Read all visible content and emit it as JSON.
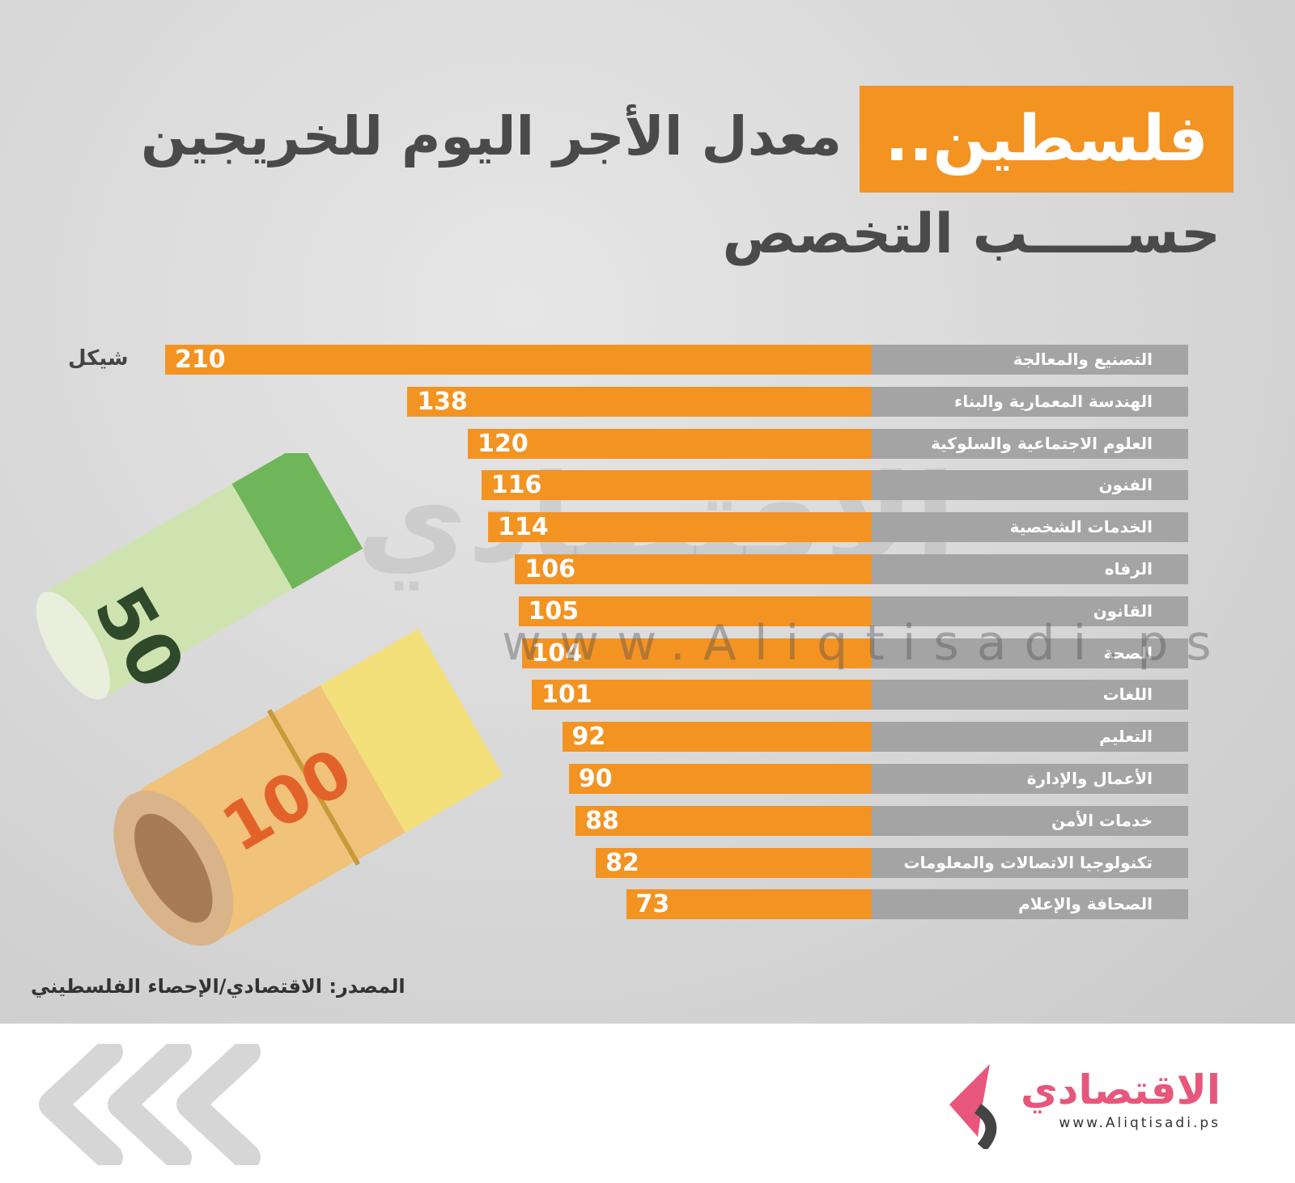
{
  "title": {
    "highlight": "فلسطين..",
    "main": "معدل الأجر اليوم للخريجين",
    "sub": "حســـــب التخصص"
  },
  "unit_label": "شيكل",
  "source": "المصدر: الاقتصادي/الإحصاء الفلسطيني",
  "watermark": {
    "text": "الاقتصادي",
    "url": "www.Aliqtisadi.ps"
  },
  "logo": {
    "text": "الاقتصادي",
    "url": "www.Aliqtisadi.ps"
  },
  "colors": {
    "bar": "#f39322",
    "track": "#a4a4a4",
    "logo": "#e8577b"
  },
  "chart_data": {
    "type": "bar",
    "orientation": "horizontal",
    "title": "فلسطين.. معدل الأجر اليوم للخريجين حسب التخصص",
    "unit": "شيكل",
    "categories": [
      "التصنيع والمعالجة",
      "الهندسة المعمارية والبناء",
      "العلوم الاجتماعية والسلوكية",
      "الفنون",
      "الخدمات الشخصية",
      "الرفاه",
      "القانون",
      "الصحة",
      "اللغات",
      "التعليم",
      "الأعمال والإدارة",
      "خدمات الأمن",
      "تكنولوجيا الاتصالات والمعلومات",
      "الصحافة والإعلام"
    ],
    "values": [
      210,
      138,
      120,
      116,
      114,
      106,
      105,
      104,
      101,
      92,
      90,
      88,
      82,
      73
    ],
    "xlim": [
      0,
      210
    ]
  }
}
